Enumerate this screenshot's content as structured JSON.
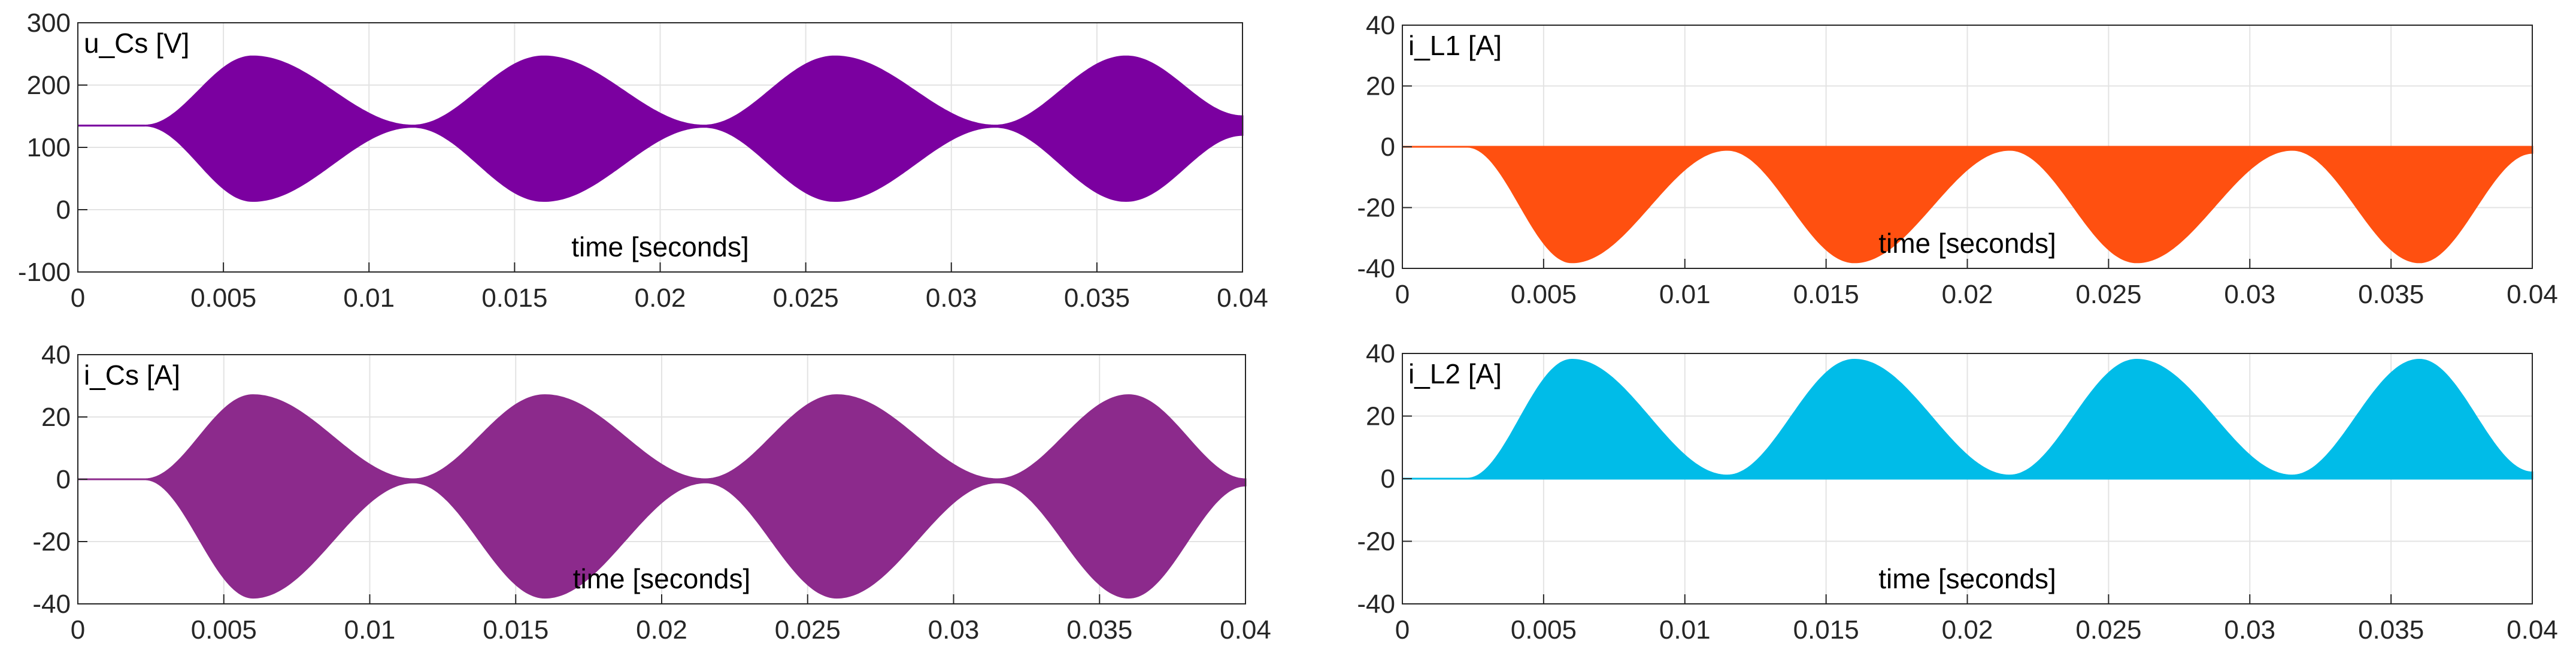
{
  "chart_data": [
    {
      "type": "area",
      "title": "u_Cs [V]",
      "xlabel": "time [seconds]",
      "ylabel": "",
      "xlim": [
        0,
        0.04
      ],
      "ylim": [
        -100,
        300
      ],
      "xticks": [
        0,
        0.005,
        0.01,
        0.015,
        0.02,
        0.025,
        0.03,
        0.035,
        0.04
      ],
      "xtick_labels": [
        "0",
        "0.005",
        "0.01",
        "0.015",
        "0.02",
        "0.025",
        "0.03",
        "0.035",
        "0.04"
      ],
      "yticks": [
        -100,
        0,
        100,
        200,
        300
      ],
      "ytick_labels": [
        "-100",
        "0",
        "100",
        "200",
        "300"
      ],
      "grid": true,
      "color": "#7b00a0",
      "series": [
        {
          "name": "u_Cs envelope upper",
          "x": [
            0,
            0.0023,
            0.006,
            0.0115,
            0.016,
            0.0215,
            0.026,
            0.0315,
            0.036,
            0.04
          ],
          "values": [
            135,
            135,
            246,
            135,
            246,
            135,
            246,
            135,
            246,
            150
          ]
        },
        {
          "name": "u_Cs envelope lower",
          "x": [
            0,
            0.0023,
            0.006,
            0.0115,
            0.016,
            0.0215,
            0.026,
            0.0315,
            0.036,
            0.04
          ],
          "values": [
            135,
            135,
            14,
            133,
            14,
            133,
            14,
            133,
            14,
            120
          ]
        }
      ]
    },
    {
      "type": "area",
      "title": "i_L1 [A]",
      "xlabel": "time [seconds]",
      "ylabel": "",
      "xlim": [
        0,
        0.04
      ],
      "ylim": [
        -40,
        40
      ],
      "xticks": [
        0,
        0.005,
        0.01,
        0.015,
        0.02,
        0.025,
        0.03,
        0.035,
        0.04
      ],
      "xtick_labels": [
        "0",
        "0.005",
        "0.01",
        "0.015",
        "0.02",
        "0.025",
        "0.03",
        "0.035",
        "0.04"
      ],
      "yticks": [
        -40,
        -20,
        0,
        20,
        40
      ],
      "ytick_labels": [
        "-40",
        "-20",
        "0",
        "20",
        "40"
      ],
      "grid": true,
      "color": "#ff5010",
      "series": [
        {
          "name": "i_L1 envelope upper",
          "x": [
            0,
            0.04
          ],
          "values": [
            0,
            0
          ]
        },
        {
          "name": "i_L1 envelope lower",
          "x": [
            0,
            0.0023,
            0.006,
            0.0115,
            0.016,
            0.0215,
            0.026,
            0.0315,
            0.036,
            0.04
          ],
          "values": [
            0,
            0,
            -38,
            -1,
            -38,
            -1,
            -38,
            -1,
            -38,
            -2
          ]
        }
      ]
    },
    {
      "type": "area",
      "title": "i_Cs [A]",
      "xlabel": "time [seconds]",
      "ylabel": "",
      "xlim": [
        0,
        0.04
      ],
      "ylim": [
        -40,
        40
      ],
      "xticks": [
        0,
        0.005,
        0.01,
        0.015,
        0.02,
        0.025,
        0.03,
        0.035,
        0.04
      ],
      "xtick_labels": [
        "0",
        "0.005",
        "0.01",
        "0.015",
        "0.02",
        "0.025",
        "0.03",
        "0.035",
        "0.04"
      ],
      "yticks": [
        -40,
        -20,
        0,
        20,
        40
      ],
      "ytick_labels": [
        "-40",
        "-20",
        "0",
        "20",
        "40"
      ],
      "grid": true,
      "color": "#8c2a8c",
      "series": [
        {
          "name": "i_Cs envelope upper",
          "x": [
            0,
            0.0023,
            0.006,
            0.0115,
            0.016,
            0.0215,
            0.026,
            0.0315,
            0.036,
            0.04
          ],
          "values": [
            0,
            0,
            27,
            0,
            27,
            0,
            27,
            0,
            27,
            0
          ]
        },
        {
          "name": "i_Cs envelope lower",
          "x": [
            0,
            0.0023,
            0.006,
            0.0115,
            0.016,
            0.0215,
            0.026,
            0.0315,
            0.036,
            0.04
          ],
          "values": [
            0,
            0,
            -38,
            -1,
            -38,
            -1,
            -38,
            -1,
            -38,
            -2
          ]
        }
      ]
    },
    {
      "type": "area",
      "title": "i_L2 [A]",
      "xlabel": "time [seconds]",
      "ylabel": "",
      "xlim": [
        0,
        0.04
      ],
      "ylim": [
        -40,
        40
      ],
      "xticks": [
        0,
        0.005,
        0.01,
        0.015,
        0.02,
        0.025,
        0.03,
        0.035,
        0.04
      ],
      "xtick_labels": [
        "0",
        "0.005",
        "0.01",
        "0.015",
        "0.02",
        "0.025",
        "0.03",
        "0.035",
        "0.04"
      ],
      "yticks": [
        -40,
        -20,
        0,
        20,
        40
      ],
      "ytick_labels": [
        "-40",
        "-20",
        "0",
        "20",
        "40"
      ],
      "grid": true,
      "color": "#00bce8",
      "series": [
        {
          "name": "i_L2 envelope upper",
          "x": [
            0,
            0.0023,
            0.006,
            0.0115,
            0.016,
            0.0215,
            0.026,
            0.0315,
            0.036,
            0.04
          ],
          "values": [
            0,
            0,
            38,
            1,
            38,
            1,
            38,
            1,
            38,
            2
          ]
        },
        {
          "name": "i_L2 envelope lower",
          "x": [
            0,
            0.04
          ],
          "values": [
            0,
            0
          ]
        }
      ]
    }
  ]
}
